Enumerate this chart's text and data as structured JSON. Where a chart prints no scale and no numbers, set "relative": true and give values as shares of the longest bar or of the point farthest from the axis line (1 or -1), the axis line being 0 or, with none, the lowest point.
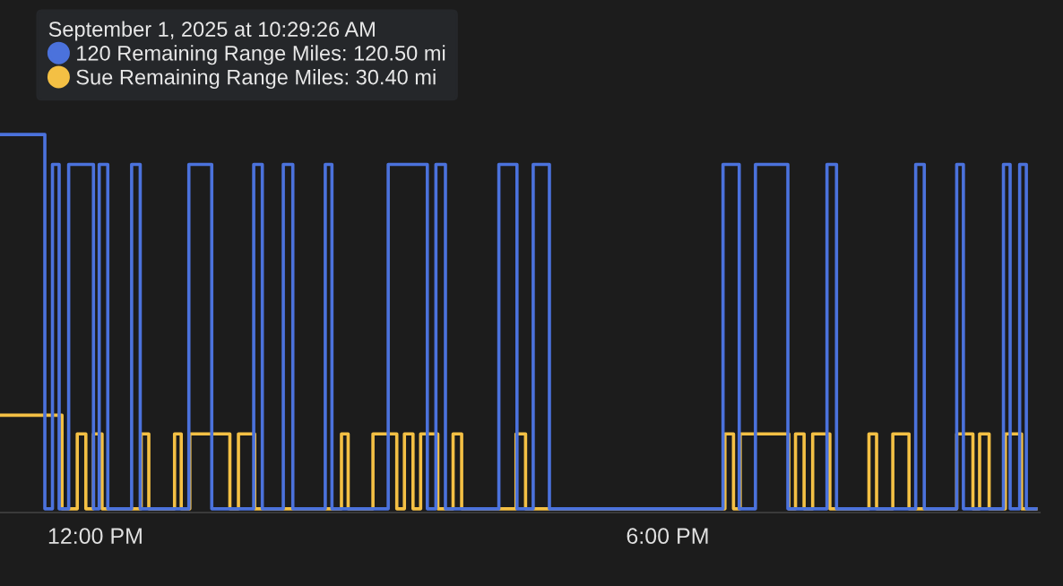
{
  "chart_data": {
    "type": "step",
    "relative": true,
    "legend_title": "September 1, 2025 at 10:29:26 AM",
    "legend": "top left",
    "grid": false,
    "tick_labels": "x",
    "marker": "none",
    "line_style": "solid",
    "xlim": [
      11.0,
      21.9
    ],
    "xticks": [
      {
        "value": 12,
        "label": "12:00 PM"
      },
      {
        "value": 18,
        "label": "6:00 PM"
      }
    ],
    "series": [
      {
        "name": "120 Remaining Range Miles: 120.50 mi",
        "color": "#4b72dc",
        "x": [
          11.0,
          11.47,
          11.55,
          11.62,
          11.72,
          11.98,
          12.04,
          12.13,
          12.38,
          12.47,
          12.98,
          13.22,
          13.66,
          13.75,
          13.97,
          14.07,
          14.41,
          14.48,
          15.07,
          15.48,
          15.57,
          15.67,
          16.23,
          16.42,
          16.59,
          16.76,
          18.58,
          18.75,
          18.92,
          19.26,
          19.67,
          19.77,
          20.6,
          20.69,
          21.03,
          21.1,
          21.52,
          21.59,
          21.69,
          21.76,
          21.86
        ],
        "values": [
          1,
          0,
          0.92,
          0,
          0.92,
          0,
          0.92,
          0,
          0.92,
          0,
          0.92,
          0,
          0.92,
          0,
          0.92,
          0,
          0.92,
          0,
          0.92,
          0,
          0.92,
          0,
          0.92,
          0,
          0.92,
          0,
          0.92,
          0,
          0.92,
          0,
          0.92,
          0,
          0.92,
          0,
          0.92,
          0,
          0.92,
          0,
          0.92,
          0,
          0
        ]
      },
      {
        "name": "Sue Remaining Range Miles: 30.40 mi",
        "color": "#f4c044",
        "x": [
          11.0,
          11.65,
          11.81,
          11.9,
          11.98,
          12.07,
          12.48,
          12.56,
          12.83,
          12.9,
          12.99,
          13.41,
          13.5,
          13.67,
          14.58,
          14.65,
          14.91,
          15.16,
          15.24,
          15.33,
          15.41,
          15.59,
          15.75,
          15.84,
          16.41,
          16.51,
          18.6,
          18.69,
          18.76,
          19.27,
          19.34,
          19.43,
          19.52,
          19.7,
          20.11,
          20.19,
          20.36,
          20.53,
          21.03,
          21.2,
          21.27,
          21.37,
          21.54,
          21.71,
          21.86
        ],
        "values": [
          0.25,
          0,
          0.2,
          0,
          0.2,
          0,
          0.2,
          0,
          0.2,
          0,
          0.2,
          0,
          0.2,
          0,
          0.2,
          0,
          0.2,
          0,
          0.2,
          0,
          0.2,
          0,
          0.2,
          0,
          0.2,
          0,
          0.2,
          0,
          0.2,
          0,
          0.2,
          0,
          0.2,
          0,
          0.2,
          0,
          0.2,
          0,
          0.2,
          0,
          0.2,
          0,
          0.2,
          0,
          0
        ]
      }
    ]
  }
}
